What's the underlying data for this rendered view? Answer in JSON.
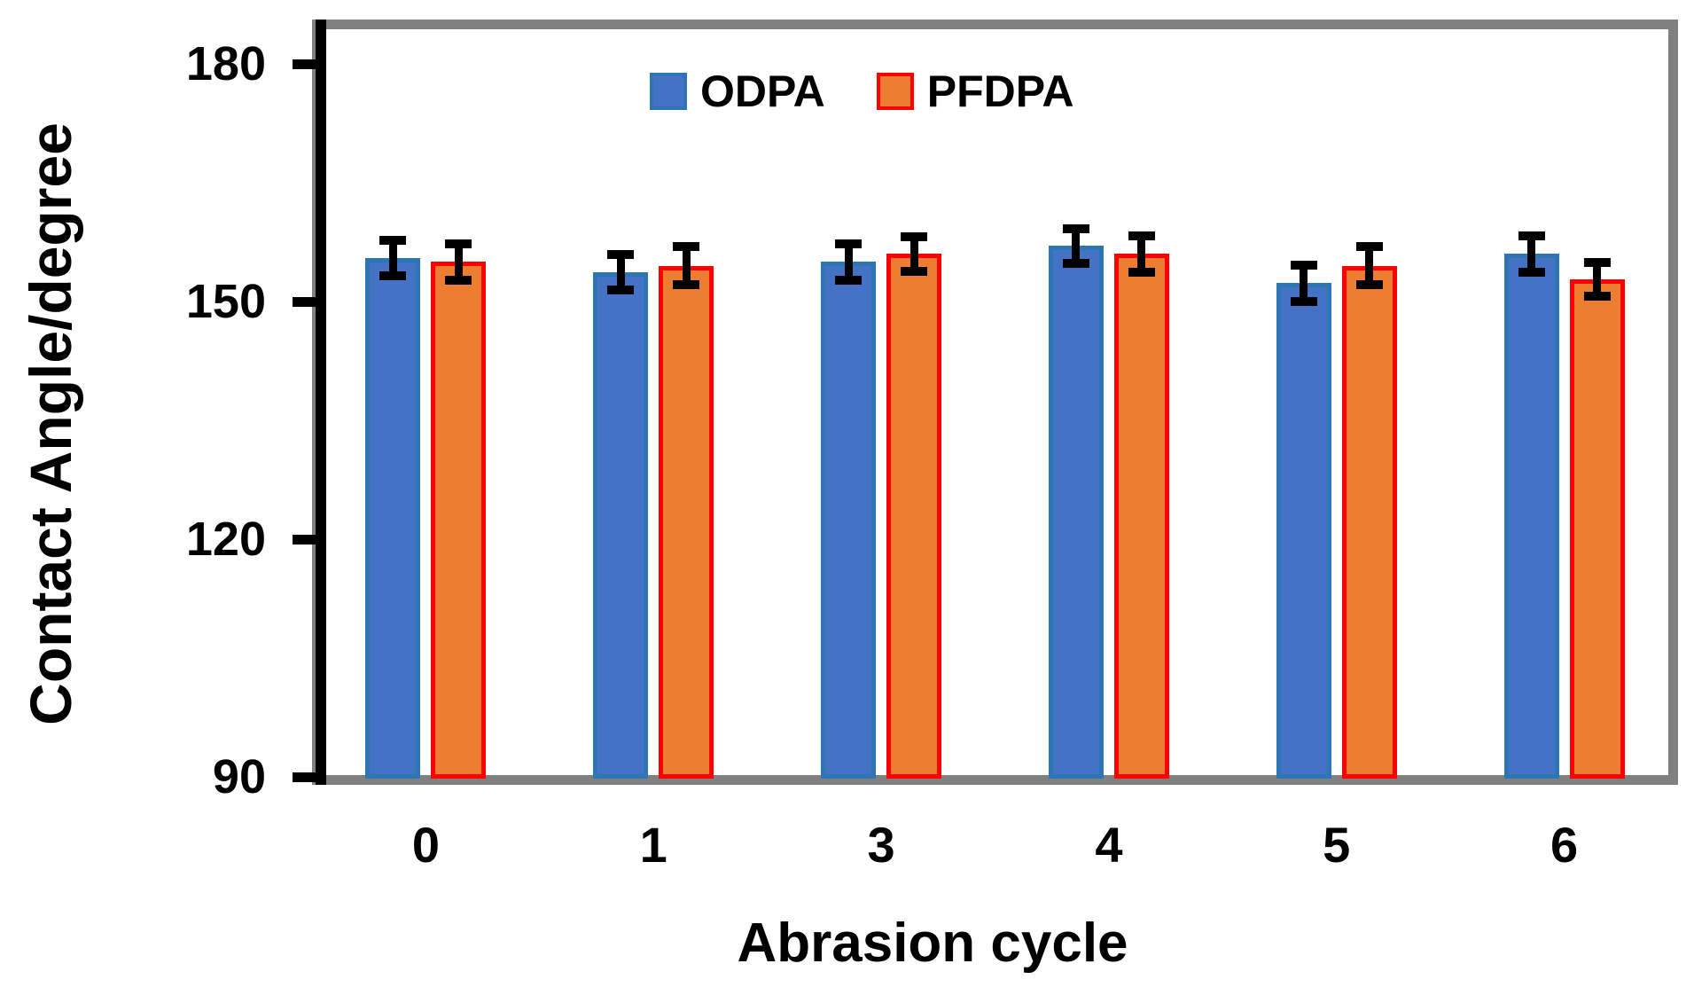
{
  "chart_data": {
    "type": "bar",
    "title": "",
    "xlabel": "Abrasion cycle",
    "ylabel": "Contact Angle/degree",
    "categories": [
      "0",
      "1",
      "3",
      "4",
      "5",
      "6"
    ],
    "series": [
      {
        "name": "ODPA",
        "fill_color": "#4472C4",
        "border_color": "#2E75B6",
        "values": [
          155.5,
          153.7,
          155.0,
          157.0,
          152.3,
          156.0
        ],
        "errors": [
          2.2,
          2.2,
          2.3,
          2.2,
          2.3,
          2.3
        ]
      },
      {
        "name": "PFDPA",
        "fill_color": "#ED7D31",
        "border_color": "#FF0000",
        "values": [
          155.0,
          154.5,
          156.0,
          156.0,
          154.5,
          152.8
        ],
        "errors": [
          2.3,
          2.4,
          2.2,
          2.3,
          2.4,
          2.1
        ]
      }
    ],
    "ylim": [
      90,
      180
    ],
    "yticks": [
      90,
      120,
      150,
      180
    ],
    "legend_position": "top-center-inside",
    "grid": false,
    "colors": {
      "frame": "#808080",
      "axis": "#000000",
      "error_bar": "#000000",
      "text": "#000000",
      "background": "#FFFFFF"
    }
  }
}
